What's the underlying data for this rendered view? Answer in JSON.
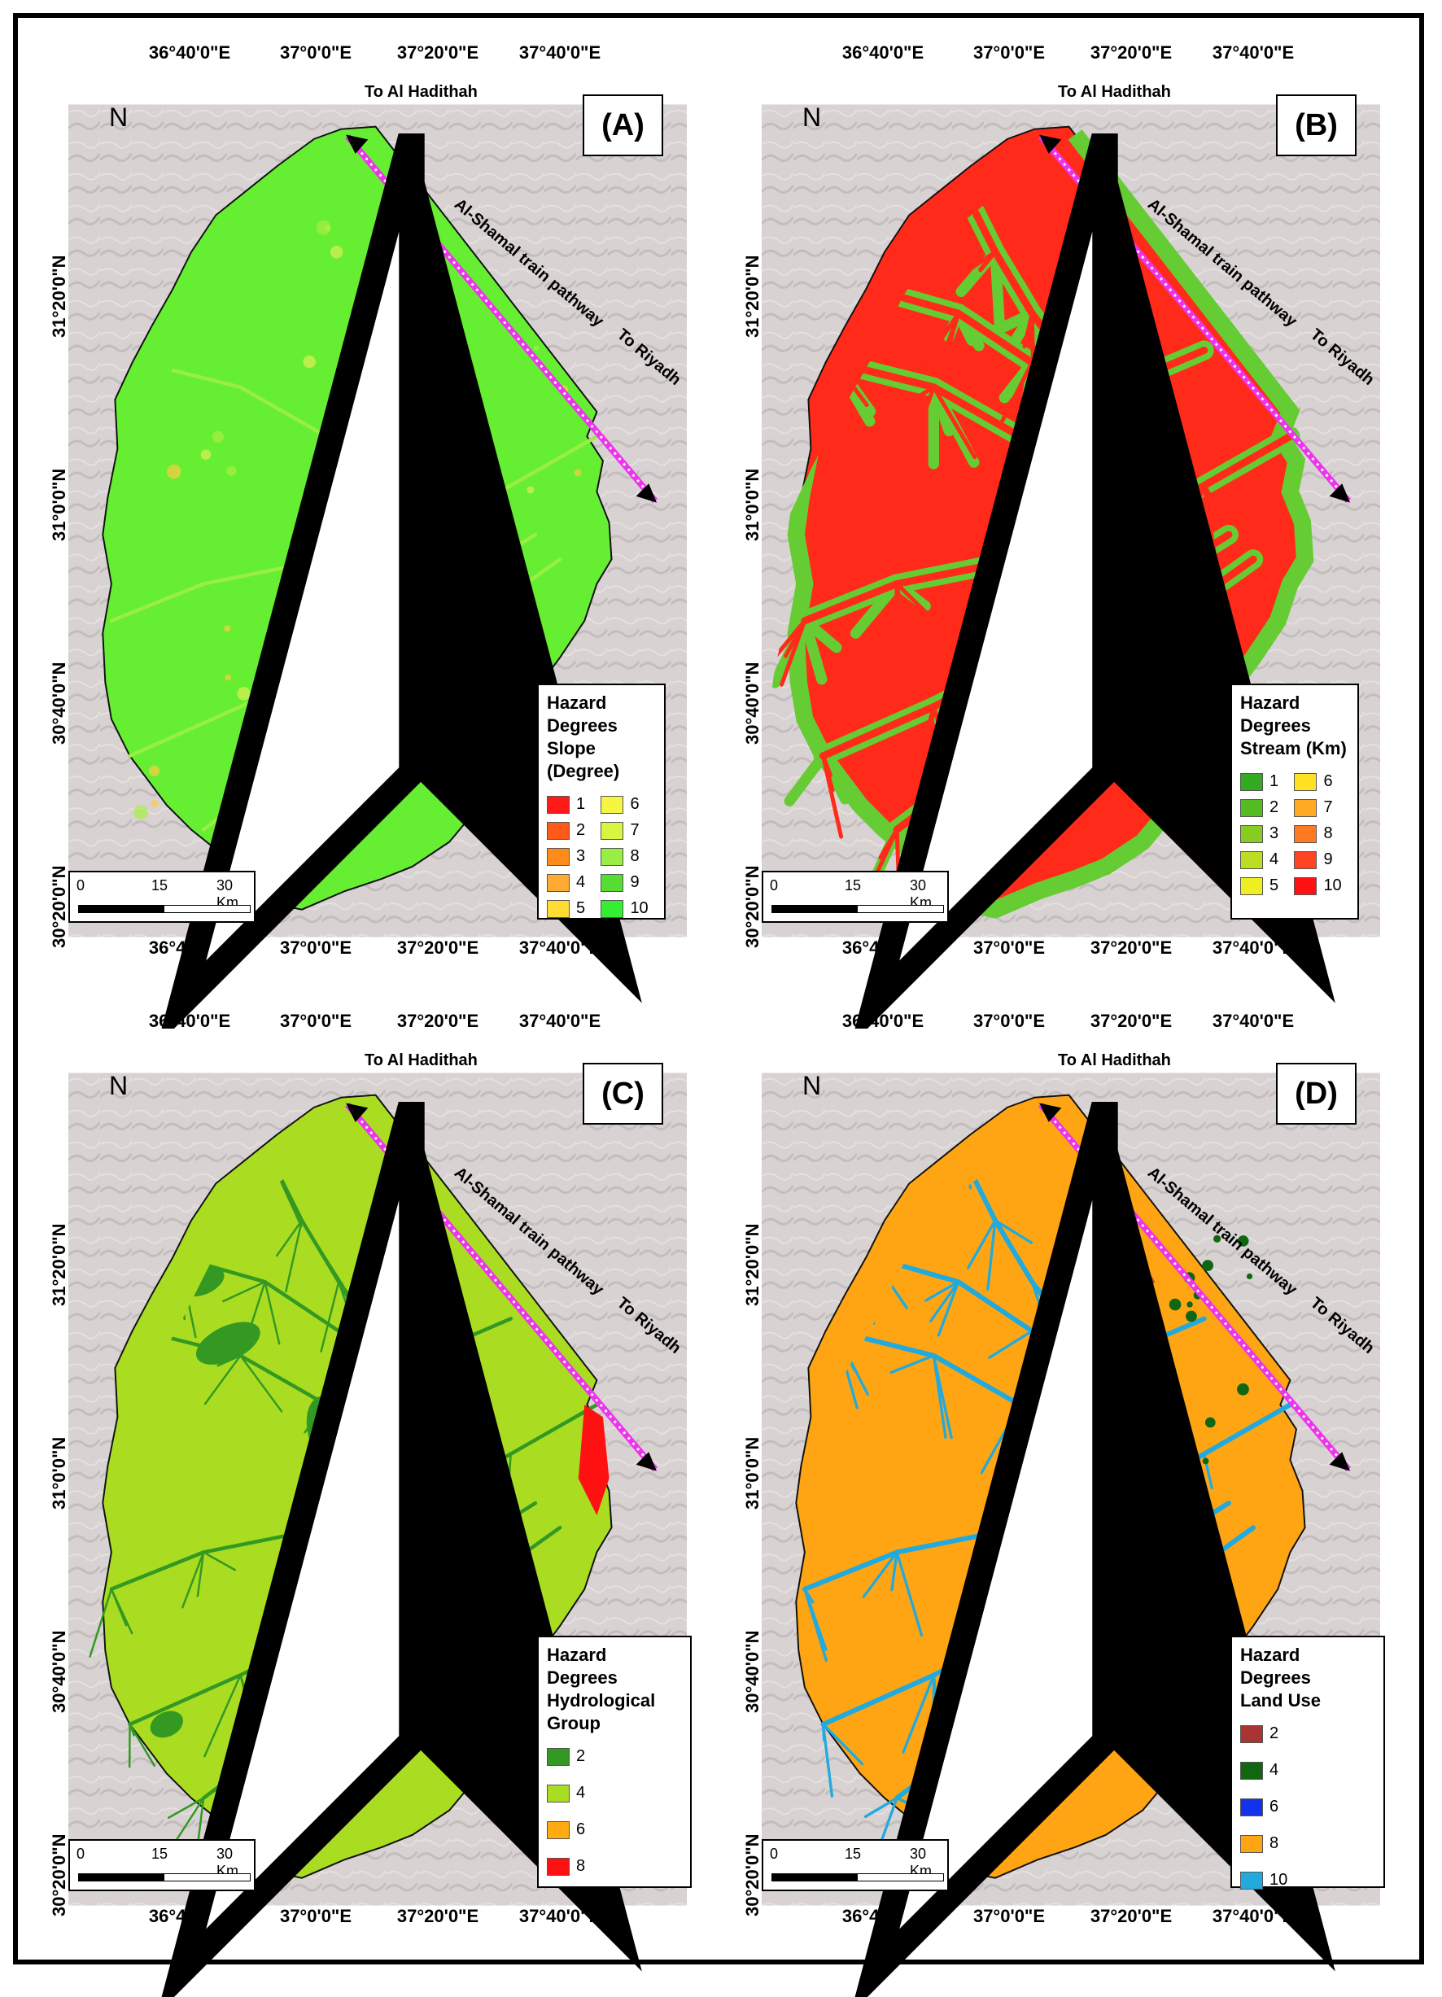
{
  "axes": {
    "top_labels": [
      "36°40'0\"E",
      "37°0'0\"E",
      "37°20'0\"E",
      "37°40'0\"E"
    ],
    "bottom_labels": [
      "36°40'0\"E",
      "37°0'0\"E",
      "37°20'0\"E",
      "37°40'0\"E"
    ],
    "left_labels": [
      "31°20'0\"N",
      "31°0'0\"N",
      "30°40'0\"N",
      "30°20'0\"N"
    ],
    "right_labels": [
      "31°20'0\"N",
      "31°0'0\"N",
      "30°40'0\"N",
      "30°20'0\"N"
    ]
  },
  "map_annotations": {
    "north": "N",
    "to_hadithah": "To Al Hadithah",
    "train": "Al-Shamal train pathway",
    "to_riyadh": "To Riyadh"
  },
  "scale_bar": {
    "labels": [
      "0",
      "15",
      "30 Km"
    ]
  },
  "panels": [
    {
      "id": "A",
      "label": "(A)",
      "legend_title": "Hazard Degrees",
      "legend_subtitle": "Slope (Degree)",
      "map_color": "#66ee33",
      "legend": [
        {
          "label": "1",
          "color": "#ff1a1a"
        },
        {
          "label": "2",
          "color": "#ff5a1a"
        },
        {
          "label": "3",
          "color": "#ff8c1a"
        },
        {
          "label": "4",
          "color": "#ffaa33"
        },
        {
          "label": "5",
          "color": "#ffdd33"
        },
        {
          "label": "6",
          "color": "#f5f542"
        },
        {
          "label": "7",
          "color": "#d9f542"
        },
        {
          "label": "8",
          "color": "#99ee44"
        },
        {
          "label": "9",
          "color": "#55dd33"
        },
        {
          "label": "10",
          "color": "#33ee33"
        }
      ]
    },
    {
      "id": "B",
      "label": "(B)",
      "legend_title": "Hazard Degrees",
      "legend_subtitle": "Stream (Km)",
      "map_color": "#ff2a1a",
      "legend": [
        {
          "label": "1",
          "color": "#33aa22"
        },
        {
          "label": "2",
          "color": "#55bb22"
        },
        {
          "label": "3",
          "color": "#88cc22"
        },
        {
          "label": "4",
          "color": "#bbdd22"
        },
        {
          "label": "5",
          "color": "#eeee22"
        },
        {
          "label": "6",
          "color": "#ffe022"
        },
        {
          "label": "7",
          "color": "#ffaa22"
        },
        {
          "label": "8",
          "color": "#ff7a22"
        },
        {
          "label": "9",
          "color": "#ff4422"
        },
        {
          "label": "10",
          "color": "#ff1111"
        }
      ]
    },
    {
      "id": "C",
      "label": "(C)",
      "legend_title": "Hazard Degrees",
      "legend_subtitle": "Hydrological Group",
      "map_color": "#aadd22",
      "legend": [
        {
          "label": "2",
          "color": "#339922"
        },
        {
          "label": "4",
          "color": "#aadd22"
        },
        {
          "label": "6",
          "color": "#ffaa11"
        },
        {
          "label": "8",
          "color": "#ff1111"
        }
      ]
    },
    {
      "id": "D",
      "label": "(D)",
      "legend_title": "Hazard Degrees",
      "legend_subtitle": "Land Use",
      "map_color": "#ffa514",
      "legend": [
        {
          "label": "2",
          "color": "#aa3333"
        },
        {
          "label": "4",
          "color": "#116611"
        },
        {
          "label": "6",
          "color": "#1133ee"
        },
        {
          "label": "8",
          "color": "#ffa514"
        },
        {
          "label": "10",
          "color": "#22aadd"
        }
      ]
    }
  ]
}
